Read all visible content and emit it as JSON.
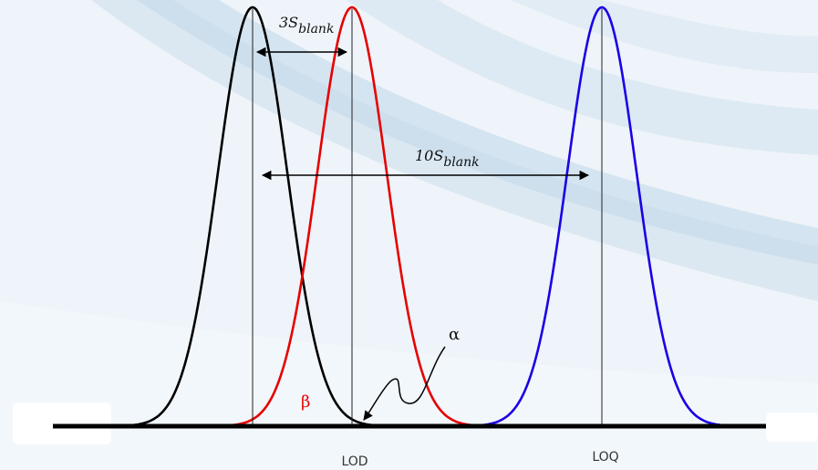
{
  "annotations": {
    "three_s_blank": {
      "prefix": "3S",
      "sub": "blank"
    },
    "ten_s_blank": {
      "prefix": "10S",
      "sub": "blank"
    },
    "alpha": "α",
    "beta": "β"
  },
  "axis_labels": {
    "lod": "LOD",
    "loq": "LOQ"
  },
  "colors": {
    "blank_curve": "#000000",
    "lod_curve": "#e60000",
    "loq_curve": "#1a00e6",
    "background": "#eef4f9",
    "swoosh": "#c9dcec"
  }
}
